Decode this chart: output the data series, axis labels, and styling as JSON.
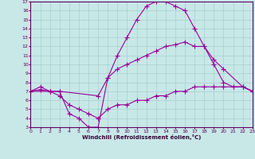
{
  "xlabel": "Windchill (Refroidissement éolien,°C)",
  "bg_color": "#c8e8e8",
  "grid_color": "#a8cece",
  "line_color": "#990099",
  "xmin": 0,
  "xmax": 23,
  "ymin": 3,
  "ymax": 17,
  "line1_x": [
    0,
    1,
    2,
    3,
    4,
    5,
    6,
    7,
    8,
    9,
    10,
    11,
    12,
    13,
    14,
    15,
    16,
    17,
    18,
    19,
    20,
    21,
    22,
    23
  ],
  "line1_y": [
    7.0,
    7.5,
    7.0,
    7.0,
    4.5,
    4.0,
    3.0,
    3.0,
    8.5,
    11.0,
    13.0,
    15.0,
    16.5,
    17.0,
    17.0,
    16.5,
    16.0,
    14.0,
    12.0,
    10.0,
    8.0,
    7.5,
    7.5,
    7.0
  ],
  "line2_x": [
    0,
    2,
    3,
    7,
    8,
    9,
    10,
    11,
    12,
    13,
    14,
    15,
    16,
    17,
    18,
    19,
    20,
    22,
    23
  ],
  "line2_y": [
    7.0,
    7.0,
    7.0,
    6.5,
    8.5,
    9.5,
    10.0,
    10.5,
    11.0,
    11.5,
    12.0,
    12.2,
    12.5,
    12.0,
    12.0,
    10.5,
    9.5,
    7.5,
    7.0
  ],
  "line3_x": [
    0,
    1,
    2,
    3,
    4,
    5,
    6,
    7,
    8,
    9,
    10,
    11,
    12,
    13,
    14,
    15,
    16,
    17,
    18,
    19,
    20,
    21,
    22,
    23
  ],
  "line3_y": [
    7.0,
    7.2,
    7.0,
    6.5,
    5.5,
    5.0,
    4.5,
    4.0,
    5.0,
    5.5,
    5.5,
    6.0,
    6.0,
    6.5,
    6.5,
    7.0,
    7.0,
    7.5,
    7.5,
    7.5,
    7.5,
    7.5,
    7.5,
    7.0
  ]
}
